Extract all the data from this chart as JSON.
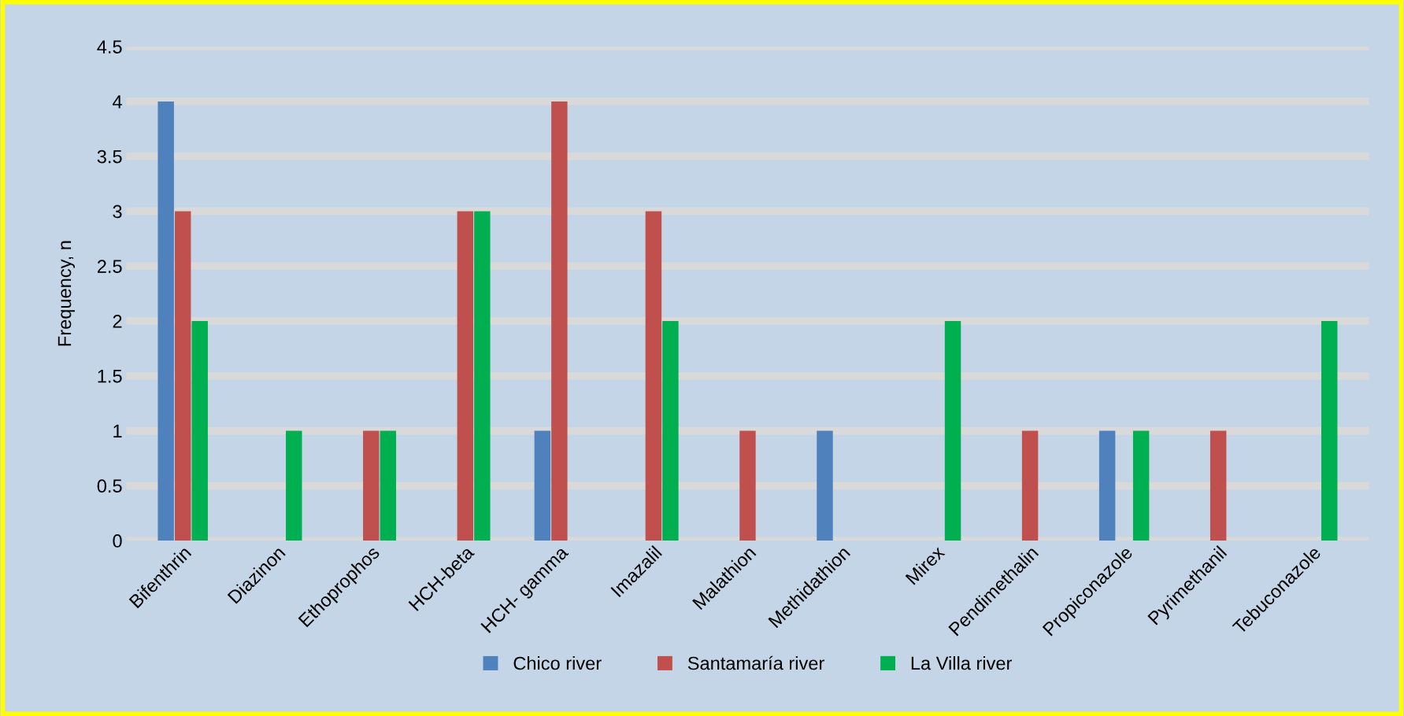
{
  "chart_data": {
    "type": "bar",
    "ylabel": "Frequency, n",
    "categories": [
      "Bifenthrin",
      "Diazinon",
      "Ethoprophos",
      "HCH-beta",
      "HCH- gamma",
      "Imazalil",
      "Malathion",
      "Methidathion",
      "Mirex",
      "Pendimethalin",
      "Propiconazole",
      "Pyrimethanil",
      "Tebuconazole"
    ],
    "series": [
      {
        "name": "Chico river",
        "color": "#4f81bd",
        "values": [
          4,
          0,
          0,
          0,
          1,
          0,
          0,
          1,
          0,
          0,
          1,
          0,
          0
        ]
      },
      {
        "name": "Santamaría river",
        "color": "#c0504d",
        "values": [
          3,
          0,
          1,
          3,
          4,
          3,
          1,
          0,
          0,
          1,
          0,
          1,
          0
        ]
      },
      {
        "name": "La Villa river",
        "color": "#00b050",
        "values": [
          2,
          1,
          1,
          3,
          0,
          2,
          0,
          0,
          2,
          0,
          1,
          0,
          2
        ]
      }
    ],
    "ylim": [
      0,
      4.5
    ],
    "yticks": [
      0,
      0.5,
      1,
      1.5,
      2,
      2.5,
      3,
      3.5,
      4,
      4.5
    ],
    "grid": "y",
    "legend": "bottom"
  }
}
